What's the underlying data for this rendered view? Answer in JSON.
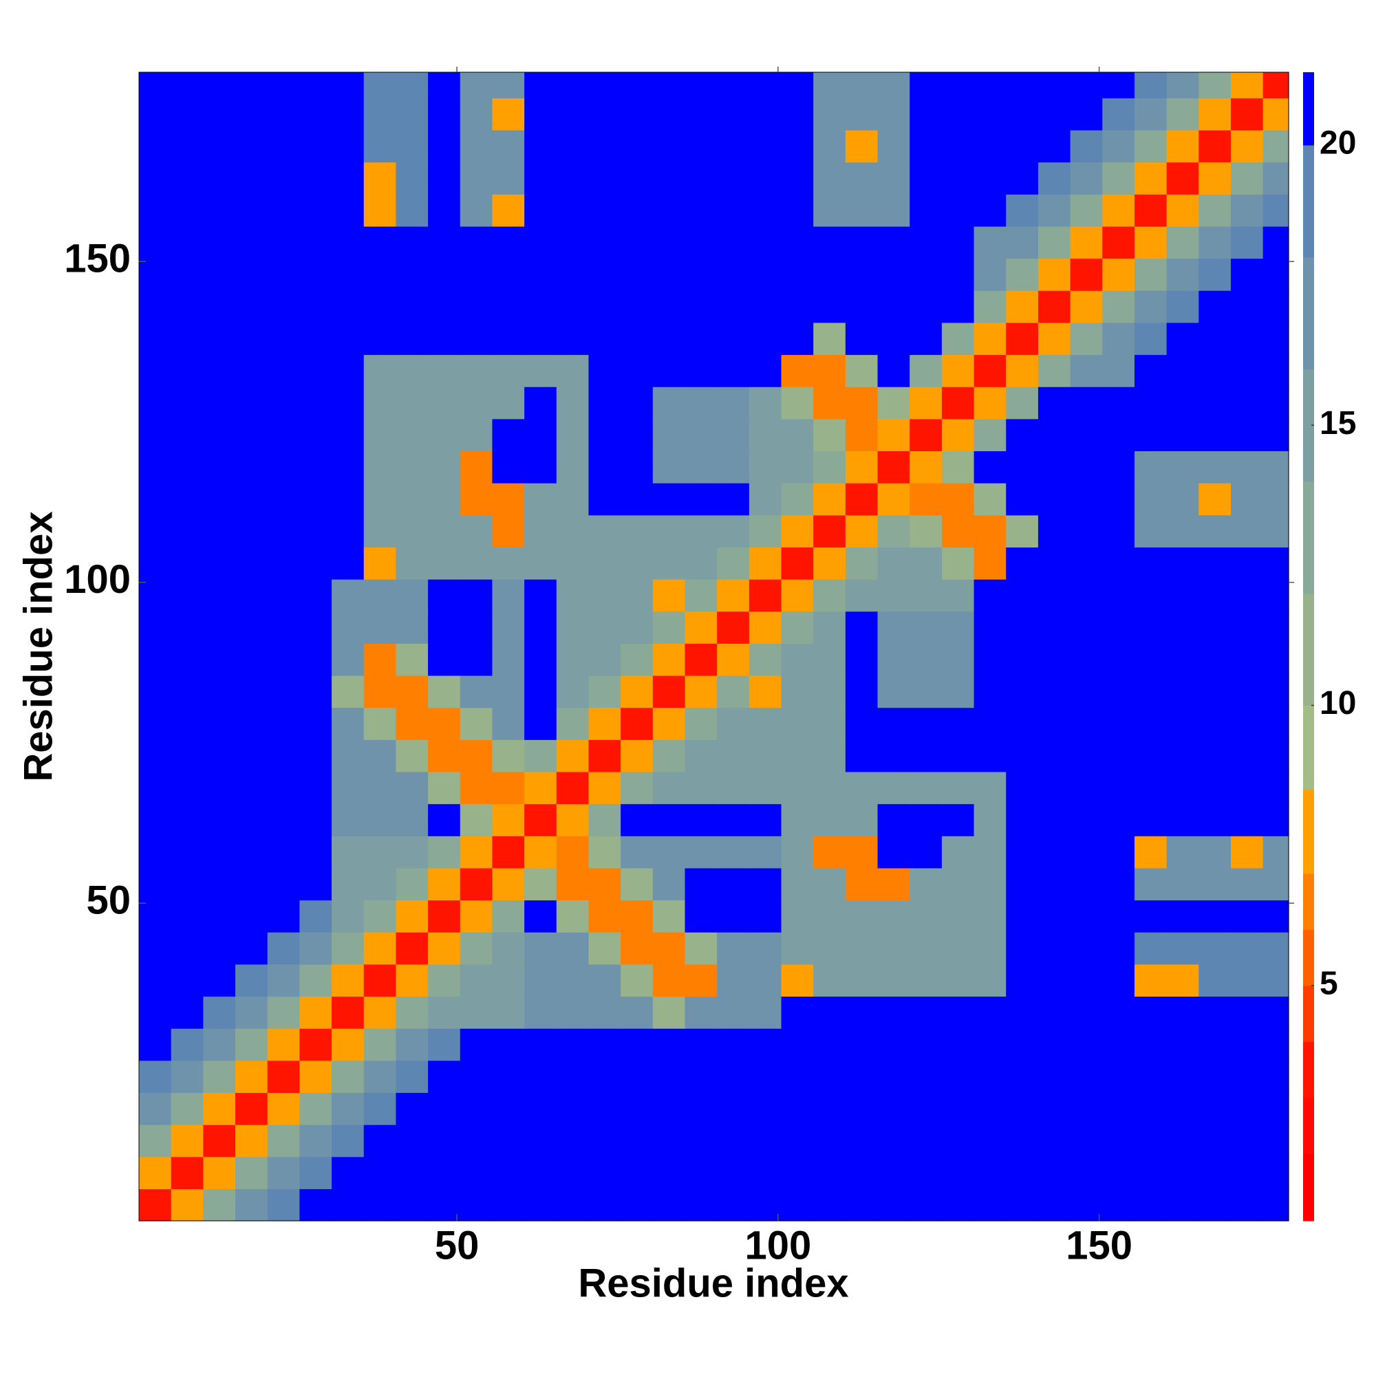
{
  "chart_data": {
    "type": "heatmap",
    "xlabel": "Residue index",
    "ylabel": "Residue index",
    "xlim": [
      0.5,
      179.5
    ],
    "ylim": [
      0.5,
      179.5
    ],
    "xticks": [
      50,
      100,
      150
    ],
    "yticks": [
      50,
      100,
      150
    ],
    "xbins": [
      0.5,
      5.5,
      10.5,
      15.5,
      20.5,
      25.5,
      30.5,
      35.5,
      40.5,
      45.5,
      50.5,
      55.5,
      60.5,
      65.5,
      70.5,
      75.5,
      80.5,
      85.5,
      90.5,
      95.5,
      100.5,
      105.5,
      110.5,
      115.5,
      120.5,
      125.5,
      130.5,
      135.5,
      140.5,
      145.5,
      150.5,
      155.5,
      160.5,
      165.5,
      170.5,
      175.5,
      179.5
    ],
    "ybins": [
      0.5,
      5.5,
      10.5,
      15.5,
      20.5,
      25.5,
      30.5,
      35.5,
      40.5,
      45.5,
      50.5,
      55.5,
      60.5,
      65.5,
      70.5,
      75.5,
      80.5,
      85.5,
      90.5,
      95.5,
      100.5,
      105.5,
      110.5,
      115.5,
      120.5,
      125.5,
      130.5,
      135.5,
      140.5,
      145.5,
      150.5,
      155.5,
      160.5,
      165.5,
      170.5,
      175.5,
      179.5
    ],
    "values": [
      [
        3,
        7,
        12,
        17,
        19,
        21,
        21,
        21,
        21,
        21,
        21,
        21,
        21,
        21,
        21,
        21,
        21,
        21,
        21,
        21,
        21,
        21,
        21,
        21,
        21,
        21,
        21,
        21,
        21,
        21,
        21,
        21,
        21,
        21,
        21,
        21
      ],
      [
        7,
        3,
        7,
        12,
        17,
        19,
        21,
        21,
        21,
        21,
        21,
        21,
        21,
        21,
        21,
        21,
        21,
        21,
        21,
        21,
        21,
        21,
        21,
        21,
        21,
        21,
        21,
        21,
        21,
        21,
        21,
        21,
        21,
        21,
        21,
        21
      ],
      [
        12,
        7,
        3,
        7,
        12,
        17,
        19,
        21,
        21,
        21,
        21,
        21,
        21,
        21,
        21,
        21,
        21,
        21,
        21,
        21,
        21,
        21,
        21,
        21,
        21,
        21,
        21,
        21,
        21,
        21,
        21,
        21,
        21,
        21,
        21,
        21
      ],
      [
        17,
        12,
        7,
        3,
        7,
        12,
        17,
        19,
        21,
        21,
        21,
        21,
        21,
        21,
        21,
        21,
        21,
        21,
        21,
        21,
        21,
        21,
        21,
        21,
        21,
        21,
        21,
        21,
        21,
        21,
        21,
        21,
        21,
        21,
        21,
        21
      ],
      [
        19,
        17,
        12,
        7,
        3,
        7,
        12,
        17,
        19,
        21,
        21,
        21,
        21,
        21,
        21,
        21,
        21,
        21,
        21,
        21,
        21,
        21,
        21,
        21,
        21,
        21,
        21,
        21,
        21,
        21,
        21,
        21,
        21,
        21,
        21,
        21
      ],
      [
        21,
        19,
        17,
        12,
        7,
        3,
        7,
        12,
        17,
        19,
        21,
        21,
        21,
        21,
        21,
        21,
        21,
        21,
        21,
        21,
        21,
        21,
        21,
        21,
        21,
        21,
        21,
        21,
        21,
        21,
        21,
        21,
        21,
        21,
        21,
        21
      ],
      [
        21,
        21,
        19,
        17,
        12,
        7,
        3,
        7,
        12,
        15,
        15,
        15,
        16,
        16,
        16,
        16,
        11,
        16,
        16,
        16,
        21,
        21,
        21,
        21,
        21,
        21,
        21,
        21,
        21,
        21,
        21,
        21,
        21,
        21,
        21,
        21
      ],
      [
        21,
        21,
        21,
        19,
        17,
        12,
        7,
        3,
        7,
        12,
        15,
        15,
        16,
        16,
        16,
        11,
        6,
        6,
        16,
        16,
        7,
        14,
        14,
        14,
        14,
        14,
        14,
        21,
        21,
        21,
        21,
        7,
        7,
        18,
        18,
        18
      ],
      [
        21,
        21,
        21,
        21,
        19,
        17,
        12,
        7,
        3,
        7,
        12,
        15,
        16,
        16,
        11,
        6,
        6,
        11,
        16,
        16,
        14,
        14,
        14,
        14,
        14,
        14,
        14,
        21,
        21,
        21,
        21,
        18,
        18,
        18,
        18,
        18
      ],
      [
        21,
        21,
        21,
        21,
        21,
        19,
        15,
        12,
        7,
        3,
        7,
        12,
        21,
        11,
        6,
        6,
        11,
        21,
        21,
        21,
        14,
        14,
        14,
        14,
        14,
        14,
        14,
        21,
        21,
        21,
        21,
        21,
        21,
        21,
        21,
        21
      ],
      [
        21,
        21,
        21,
        21,
        21,
        21,
        15,
        15,
        12,
        7,
        3,
        7,
        11,
        6,
        6,
        11,
        16,
        21,
        21,
        21,
        14,
        14,
        6,
        6,
        14,
        14,
        14,
        21,
        21,
        21,
        21,
        17,
        17,
        17,
        17,
        17
      ],
      [
        21,
        21,
        21,
        21,
        21,
        21,
        15,
        15,
        15,
        12,
        7,
        3,
        7,
        6,
        11,
        16,
        16,
        16,
        16,
        16,
        14,
        6,
        6,
        21,
        21,
        14,
        14,
        21,
        21,
        21,
        21,
        7,
        17,
        17,
        7,
        17
      ],
      [
        21,
        21,
        21,
        21,
        21,
        21,
        16,
        16,
        16,
        21,
        11,
        7,
        3,
        7,
        12,
        21,
        21,
        21,
        21,
        21,
        14,
        14,
        14,
        21,
        21,
        21,
        14,
        21,
        21,
        21,
        21,
        21,
        21,
        21,
        21,
        21
      ],
      [
        21,
        21,
        21,
        21,
        21,
        21,
        16,
        16,
        16,
        11,
        6,
        6,
        7,
        3,
        7,
        12,
        14,
        14,
        14,
        14,
        14,
        14,
        14,
        14,
        14,
        14,
        14,
        21,
        21,
        21,
        21,
        21,
        21,
        21,
        21,
        21
      ],
      [
        21,
        21,
        21,
        21,
        21,
        21,
        16,
        16,
        11,
        6,
        6,
        11,
        12,
        7,
        3,
        7,
        12,
        14,
        14,
        14,
        14,
        14,
        21,
        21,
        21,
        21,
        21,
        21,
        21,
        21,
        21,
        21,
        21,
        21,
        21,
        21
      ],
      [
        21,
        21,
        21,
        21,
        21,
        21,
        16,
        11,
        6,
        6,
        11,
        16,
        21,
        12,
        7,
        3,
        7,
        12,
        14,
        14,
        14,
        14,
        21,
        21,
        21,
        21,
        21,
        21,
        21,
        21,
        21,
        21,
        21,
        21,
        21,
        21
      ],
      [
        21,
        21,
        21,
        21,
        21,
        21,
        11,
        6,
        6,
        11,
        16,
        16,
        21,
        14,
        12,
        7,
        3,
        7,
        12,
        7,
        14,
        14,
        21,
        16,
        16,
        16,
        21,
        21,
        21,
        21,
        21,
        21,
        21,
        21,
        21,
        21
      ],
      [
        21,
        21,
        21,
        21,
        21,
        21,
        16,
        6,
        11,
        21,
        21,
        16,
        21,
        14,
        14,
        12,
        7,
        3,
        7,
        12,
        14,
        14,
        21,
        16,
        16,
        16,
        21,
        21,
        21,
        21,
        21,
        21,
        21,
        21,
        21,
        21
      ],
      [
        21,
        21,
        21,
        21,
        21,
        21,
        16,
        16,
        16,
        21,
        21,
        16,
        21,
        14,
        14,
        14,
        12,
        7,
        3,
        7,
        12,
        14,
        21,
        16,
        16,
        16,
        21,
        21,
        21,
        21,
        21,
        21,
        21,
        21,
        21,
        21
      ],
      [
        21,
        21,
        21,
        21,
        21,
        21,
        16,
        16,
        16,
        21,
        21,
        16,
        21,
        14,
        14,
        14,
        7,
        12,
        7,
        3,
        7,
        12,
        14,
        14,
        14,
        14,
        21,
        21,
        21,
        21,
        21,
        21,
        21,
        21,
        21,
        21
      ],
      [
        21,
        21,
        21,
        21,
        21,
        21,
        21,
        7,
        14,
        14,
        14,
        14,
        14,
        14,
        14,
        14,
        14,
        14,
        12,
        7,
        3,
        7,
        12,
        14,
        14,
        11,
        6,
        21,
        21,
        21,
        21,
        21,
        21,
        21,
        21,
        21
      ],
      [
        21,
        21,
        21,
        21,
        21,
        21,
        21,
        14,
        14,
        14,
        14,
        6,
        14,
        14,
        14,
        14,
        14,
        14,
        14,
        12,
        7,
        3,
        7,
        12,
        11,
        6,
        6,
        11,
        21,
        21,
        21,
        17,
        17,
        17,
        17,
        17
      ],
      [
        21,
        21,
        21,
        21,
        21,
        21,
        21,
        14,
        14,
        14,
        6,
        6,
        14,
        14,
        21,
        21,
        21,
        21,
        21,
        14,
        12,
        7,
        3,
        7,
        6,
        6,
        11,
        21,
        21,
        21,
        21,
        17,
        17,
        7,
        17,
        17
      ],
      [
        21,
        21,
        21,
        21,
        21,
        21,
        21,
        14,
        14,
        14,
        6,
        21,
        21,
        14,
        21,
        21,
        16,
        16,
        16,
        14,
        14,
        12,
        7,
        3,
        7,
        11,
        21,
        21,
        21,
        21,
        21,
        17,
        17,
        17,
        17,
        17
      ],
      [
        21,
        21,
        21,
        21,
        21,
        21,
        21,
        14,
        14,
        14,
        14,
        21,
        21,
        14,
        21,
        21,
        16,
        16,
        16,
        14,
        14,
        11,
        6,
        7,
        3,
        7,
        12,
        21,
        21,
        21,
        21,
        21,
        21,
        21,
        21,
        21
      ],
      [
        21,
        21,
        21,
        21,
        21,
        21,
        21,
        14,
        14,
        14,
        14,
        14,
        21,
        14,
        21,
        21,
        16,
        16,
        16,
        14,
        11,
        6,
        6,
        11,
        7,
        3,
        7,
        12,
        21,
        21,
        21,
        21,
        21,
        21,
        21,
        21
      ],
      [
        21,
        21,
        21,
        21,
        21,
        21,
        21,
        14,
        14,
        14,
        14,
        14,
        14,
        14,
        21,
        21,
        21,
        21,
        21,
        21,
        6,
        6,
        11,
        21,
        12,
        7,
        3,
        7,
        12,
        16,
        16,
        21,
        21,
        21,
        21,
        21
      ],
      [
        21,
        21,
        21,
        21,
        21,
        21,
        21,
        21,
        21,
        21,
        21,
        21,
        21,
        21,
        21,
        21,
        21,
        21,
        21,
        21,
        21,
        11,
        21,
        21,
        21,
        12,
        7,
        3,
        7,
        12,
        16,
        19,
        21,
        21,
        21,
        21
      ],
      [
        21,
        21,
        21,
        21,
        21,
        21,
        21,
        21,
        21,
        21,
        21,
        21,
        21,
        21,
        21,
        21,
        21,
        21,
        21,
        21,
        21,
        21,
        21,
        21,
        21,
        21,
        12,
        7,
        3,
        7,
        12,
        17,
        19,
        21,
        21,
        21
      ],
      [
        21,
        21,
        21,
        21,
        21,
        21,
        21,
        21,
        21,
        21,
        21,
        21,
        21,
        21,
        21,
        21,
        21,
        21,
        21,
        21,
        21,
        21,
        21,
        21,
        21,
        21,
        16,
        12,
        7,
        3,
        7,
        12,
        17,
        19,
        21,
        21
      ],
      [
        21,
        21,
        21,
        21,
        21,
        21,
        21,
        21,
        21,
        21,
        21,
        21,
        21,
        21,
        21,
        21,
        21,
        21,
        21,
        21,
        21,
        21,
        21,
        21,
        21,
        21,
        16,
        16,
        12,
        7,
        3,
        7,
        12,
        17,
        19,
        21
      ],
      [
        21,
        21,
        21,
        21,
        21,
        21,
        21,
        7,
        18,
        21,
        17,
        7,
        21,
        21,
        21,
        21,
        21,
        21,
        21,
        21,
        21,
        17,
        17,
        17,
        21,
        21,
        21,
        19,
        17,
        12,
        7,
        3,
        7,
        12,
        17,
        19
      ],
      [
        21,
        21,
        21,
        21,
        21,
        21,
        21,
        7,
        18,
        21,
        17,
        17,
        21,
        21,
        21,
        21,
        21,
        21,
        21,
        21,
        21,
        17,
        17,
        17,
        21,
        21,
        21,
        21,
        19,
        17,
        12,
        7,
        3,
        7,
        12,
        17
      ],
      [
        21,
        21,
        21,
        21,
        21,
        21,
        21,
        18,
        18,
        21,
        17,
        17,
        21,
        21,
        21,
        21,
        21,
        21,
        21,
        21,
        21,
        17,
        7,
        17,
        21,
        21,
        21,
        21,
        21,
        19,
        17,
        12,
        7,
        3,
        7,
        12
      ],
      [
        21,
        21,
        21,
        21,
        21,
        21,
        21,
        18,
        18,
        21,
        17,
        7,
        21,
        21,
        21,
        21,
        21,
        21,
        21,
        21,
        21,
        17,
        17,
        17,
        21,
        21,
        21,
        21,
        21,
        21,
        19,
        17,
        12,
        7,
        3,
        7
      ],
      [
        21,
        21,
        21,
        21,
        21,
        21,
        21,
        18,
        18,
        21,
        17,
        17,
        21,
        21,
        21,
        21,
        21,
        21,
        21,
        21,
        21,
        17,
        17,
        17,
        21,
        21,
        21,
        21,
        21,
        21,
        21,
        19,
        17,
        12,
        7,
        3
      ]
    ],
    "colorbar": {
      "lim": [
        0.8,
        21.3
      ],
      "ticks": [
        5,
        10,
        15,
        20
      ],
      "levels": [
        0.8,
        2,
        3,
        4,
        5,
        6,
        7,
        8.5,
        10,
        12,
        14,
        16,
        18,
        20,
        21.3
      ],
      "colors": [
        "#ff0000",
        "#ff0a00",
        "#ff1400",
        "#ff3c00",
        "#ff6000",
        "#ff8000",
        "#ffa000",
        "#a4bc88",
        "#98b38c",
        "#8aa996",
        "#7d9ea2",
        "#6f93aa",
        "#5e86b2",
        "#0000ff"
      ]
    }
  }
}
